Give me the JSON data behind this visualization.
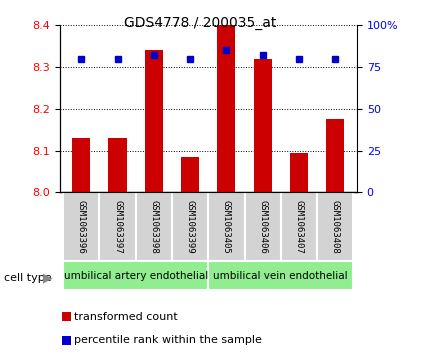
{
  "title": "GDS4778 / 200035_at",
  "samples": [
    "GSM1063396",
    "GSM1063397",
    "GSM1063398",
    "GSM1063399",
    "GSM1063405",
    "GSM1063406",
    "GSM1063407",
    "GSM1063408"
  ],
  "transformed_counts": [
    8.13,
    8.13,
    8.34,
    8.085,
    8.4,
    8.32,
    8.095,
    8.175
  ],
  "percentile_ranks": [
    80,
    80,
    82,
    80,
    85,
    82,
    80,
    80
  ],
  "cell_type_labels": [
    "umbilical artery endothelial",
    "umbilical vein endothelial"
  ],
  "cell_type_color": "#90ee90",
  "ylim_left": [
    8.0,
    8.4
  ],
  "ylim_right": [
    0,
    100
  ],
  "yticks_left": [
    8.0,
    8.1,
    8.2,
    8.3,
    8.4
  ],
  "yticks_right": [
    0,
    25,
    50,
    75,
    100
  ],
  "ytick_labels_right": [
    "0",
    "25",
    "50",
    "75",
    "100%"
  ],
  "bar_color": "#cc0000",
  "dot_color": "#0000cc",
  "bg_color": "#ffffff",
  "cell_type_label": "cell type",
  "legend_items": [
    "transformed count",
    "percentile rank within the sample"
  ],
  "legend_colors": [
    "#cc0000",
    "#0000cc"
  ]
}
